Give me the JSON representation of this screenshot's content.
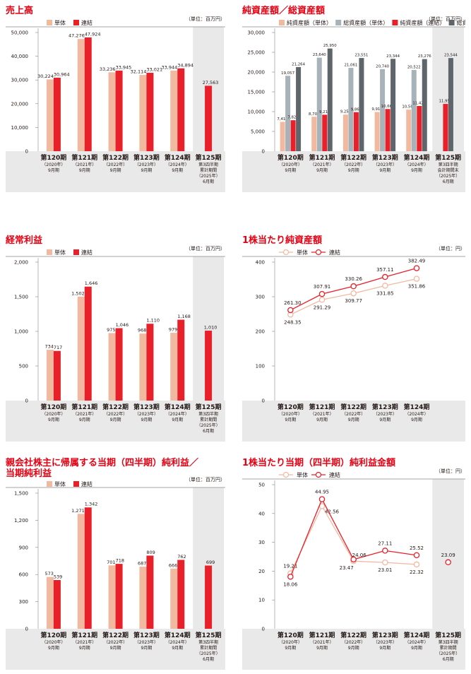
{
  "colors": {
    "title": "#e60012",
    "single": "#f2b9a1",
    "consol": "#e8202a",
    "single_assets": "#a7b2b9",
    "consol_assets": "#5e666c",
    "shade": "#e9e9e9",
    "axis_line": "#888888",
    "grid_line": "#cfcfcf"
  },
  "common": {
    "unit_million": "（単位：百万円）",
    "unit_yen": "（単位：円）",
    "single": "単体",
    "consol": "連結"
  },
  "categories": [
    {
      "period": "第120期",
      "sub1": "（2020年）",
      "sub2": "9月期"
    },
    {
      "period": "第121期",
      "sub1": "（2021年）",
      "sub2": "9月期"
    },
    {
      "period": "第122期",
      "sub1": "（2022年）",
      "sub2": "9月期"
    },
    {
      "period": "第123期",
      "sub1": "（2023年）",
      "sub2": "9月期"
    },
    {
      "period": "第124期",
      "sub1": "（2024年）",
      "sub2": "9月期"
    },
    {
      "period": "第125期",
      "sub1": "第3四半期",
      "sub2": "累計期間",
      "sub3": "（2025年）",
      "sub4": "6月期"
    }
  ],
  "categories_assets_last": {
    "period": "第125期",
    "sub1": "第3四半期",
    "sub2": "会計期間末",
    "sub3": "（2025年）",
    "sub4": "6月期"
  },
  "chart_data": [
    {
      "id": "sales",
      "type": "bar",
      "title": "売上高",
      "ylabel": "",
      "ylim": [
        0,
        50000
      ],
      "ticks": [
        "0",
        "10,000",
        "20,000",
        "30,000",
        "40,000",
        "50,000"
      ],
      "series": [
        {
          "name": "単体",
          "values": [
            30224,
            47276,
            33236,
            32114,
            33944,
            null
          ],
          "labels": [
            "30,224",
            "47,276",
            "33,236",
            "32,114",
            "33,944",
            ""
          ]
        },
        {
          "name": "連結",
          "values": [
            30964,
            47924,
            33945,
            33021,
            34894,
            27563
          ],
          "labels": [
            "30,964",
            "47,924",
            "33,945",
            "33,021",
            "34,894",
            "27,563"
          ]
        }
      ]
    },
    {
      "id": "assets",
      "type": "bar",
      "title": "純資産額／総資産額",
      "ylabel": "",
      "ylim": [
        0,
        30000
      ],
      "ticks": [
        "0",
        "5,000",
        "10,000",
        "15,000",
        "20,000",
        "25,000",
        "30,000"
      ],
      "series": [
        {
          "name": "純資産額（単体）",
          "values": [
            7418,
            8701,
            9253,
            9911,
            10509,
            null
          ],
          "labels": [
            "7,418",
            "8,701",
            "9,253",
            "9,911",
            "10,509",
            ""
          ]
        },
        {
          "name": "総資産額（単体）",
          "values": [
            19057,
            23640,
            21061,
            20740,
            20522,
            null
          ],
          "labels": [
            "19,057",
            "23,640",
            "21,061",
            "20,740",
            "20,522",
            ""
          ]
        },
        {
          "name": "純資産額（連結）",
          "values": [
            7825,
            9214,
            9865,
            10666,
            11424,
            11951
          ],
          "labels": [
            "7,825",
            "9,214",
            "9,865",
            "10,666",
            "11,424",
            "11,951"
          ]
        },
        {
          "name": "総資産額（連結）",
          "values": [
            21264,
            25950,
            23551,
            23344,
            23276,
            23544
          ],
          "labels": [
            "21,264",
            "25,950",
            "23,551",
            "23,344",
            "23,276",
            "23,544"
          ]
        }
      ]
    },
    {
      "id": "ordinary",
      "type": "bar",
      "title": "経常利益",
      "ylabel": "",
      "ylim": [
        0,
        2000
      ],
      "ticks": [
        "0",
        "500",
        "1,000",
        "1,500",
        "2,000"
      ],
      "series": [
        {
          "name": "単体",
          "values": [
            734,
            1502,
            975,
            968,
            979,
            null
          ],
          "labels": [
            "734",
            "1,502",
            "975",
            "968",
            "979",
            ""
          ]
        },
        {
          "name": "連結",
          "values": [
            717,
            1646,
            1046,
            1110,
            1168,
            1010
          ],
          "labels": [
            "717",
            "1,646",
            "1,046",
            "1,110",
            "1,168",
            "1,010"
          ]
        }
      ]
    },
    {
      "id": "bps",
      "type": "line",
      "title": "1株当たり純資産額",
      "ylabel": "",
      "ylim": [
        0,
        400
      ],
      "ticks": [
        "0",
        "100",
        "200",
        "300",
        "400"
      ],
      "series": [
        {
          "name": "単体",
          "values": [
            248.35,
            291.29,
            309.77,
            331.85,
            351.86
          ],
          "labels": [
            "248.35",
            "291.29",
            "309.77",
            "331.85",
            "351.86"
          ]
        },
        {
          "name": "連結",
          "values": [
            261.3,
            307.91,
            330.26,
            357.11,
            382.49
          ],
          "labels": [
            "261.30",
            "307.91",
            "330.26",
            "357.11",
            "382.49"
          ]
        }
      ]
    },
    {
      "id": "netincome",
      "type": "bar",
      "title": "親会社株主に帰属する当期（四半期）純利益／",
      "title2": "当期純利益",
      "ylabel": "",
      "ylim": [
        0,
        1500
      ],
      "ticks": [
        "0",
        "300",
        "600",
        "900",
        "1,200",
        "1,500"
      ],
      "series": [
        {
          "name": "単体",
          "values": [
            573,
            1271,
            701,
            687,
            666,
            null
          ],
          "labels": [
            "573",
            "1,271",
            "701",
            "687",
            "666",
            ""
          ]
        },
        {
          "name": "連結",
          "values": [
            539,
            1342,
            718,
            809,
            762,
            699
          ],
          "labels": [
            "539",
            "1,342",
            "718",
            "809",
            "762",
            "699"
          ]
        }
      ]
    },
    {
      "id": "eps",
      "type": "line",
      "title": "1株当たり当期（四半期）純利益金額",
      "ylabel": "",
      "ylim": [
        0,
        50
      ],
      "ticks": [
        "0",
        "10",
        "20",
        "30",
        "40",
        "50"
      ],
      "series": [
        {
          "name": "単体",
          "values": [
            19.21,
            42.56,
            23.47,
            23.01,
            22.32,
            null
          ],
          "labels": [
            "19.21",
            "42.56",
            "23.47",
            "23.01",
            "22.32",
            ""
          ]
        },
        {
          "name": "連結",
          "values": [
            18.06,
            44.95,
            24.06,
            27.11,
            25.52,
            23.09
          ],
          "labels": [
            "18.06",
            "44.95",
            "24.06",
            "27.11",
            "25.52",
            "23.09"
          ]
        }
      ]
    }
  ]
}
